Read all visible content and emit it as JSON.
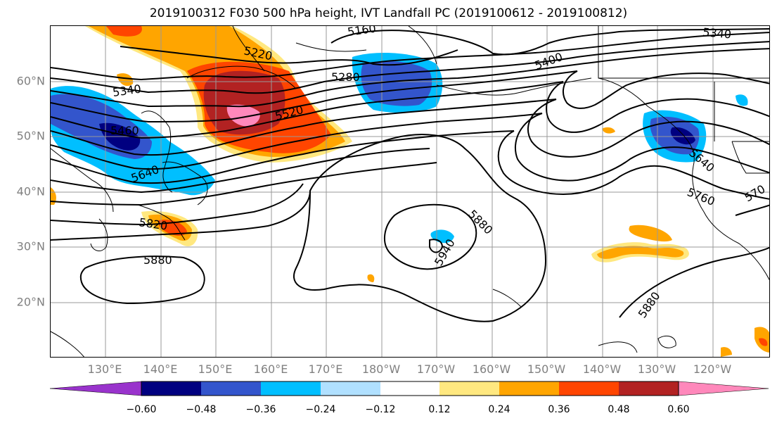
{
  "title": "2019100312 F030 500 hPa height, IVT Landfall PC (2019100612 - 2019100812)",
  "lat_labels": [
    "60°N",
    "50°N",
    "40°N",
    "30°N",
    "20°N"
  ],
  "lon_labels": [
    "130°E",
    "140°E",
    "150°E",
    "160°E",
    "170°E",
    "180°W",
    "170°W",
    "160°W",
    "150°W",
    "140°W",
    "130°W",
    "120°W"
  ],
  "contour_labels": [
    "5160",
    "5220",
    "5280",
    "5340",
    "5400",
    "5460",
    "5520",
    "5640",
    "5760",
    "5820",
    "5880",
    "5880",
    "5880",
    "5940",
    "5340",
    "5640",
    "570"
  ],
  "colorbar": {
    "ticks": [
      "−0.60",
      "−0.48",
      "−0.36",
      "−0.24",
      "−0.12",
      "0.12",
      "0.24",
      "0.36",
      "0.48",
      "0.60"
    ],
    "colors": [
      "#9933cc",
      "#000080",
      "#3355cc",
      "#00bfff",
      "#b0e0ff",
      "#ffffff",
      "#ffe880",
      "#ffa500",
      "#ff4500",
      "#b22222",
      "#ff88bb"
    ]
  },
  "colors": {
    "lowest": "#9933cc",
    "blue_dark": "#000080",
    "blue": "#3355cc",
    "cyan": "#00bfff",
    "light_blue": "#b0e0ff",
    "yellow": "#ffe880",
    "orange": "#ffa500",
    "red_orange": "#ff4500",
    "dark_red": "#b22222",
    "pink": "#ff88bb"
  }
}
